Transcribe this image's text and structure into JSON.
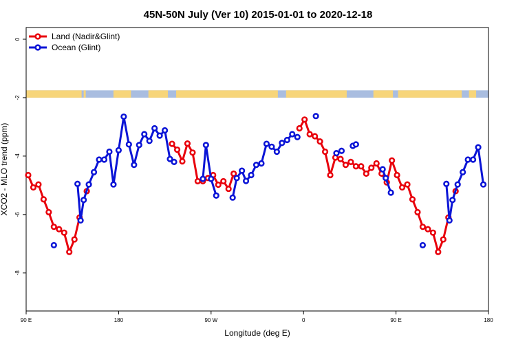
{
  "chart_data": {
    "type": "line",
    "title": "45N-50N July (Ver 10)   2015-01-01 to 2020-12-18",
    "xlabel": "Longitude (deg E)",
    "ylabel": "XCO2 - MLO trend (ppm)",
    "xlim": [
      90,
      540
    ],
    "ylim": [
      -9.3,
      0.4
    ],
    "x_ticks": [
      {
        "value": 90,
        "label": "90 E"
      },
      {
        "value": 180,
        "label": "180"
      },
      {
        "value": 270,
        "label": "90 W"
      },
      {
        "value": 360,
        "label": "0"
      },
      {
        "value": 450,
        "label": "90 E"
      },
      {
        "value": 540,
        "label": "180"
      }
    ],
    "y_ticks": [
      {
        "value": 0,
        "label": "0"
      },
      {
        "value": -2,
        "label": "-2"
      },
      {
        "value": -4,
        "label": "-4"
      },
      {
        "value": -6,
        "label": "-6"
      },
      {
        "value": -8,
        "label": "-8"
      }
    ],
    "grid": false,
    "legend": {
      "position": "top-left",
      "entries": [
        "Land (Nadir&Glint)",
        "Ocean (Glint)"
      ]
    },
    "colors": {
      "land": "#e8000b",
      "ocean": "#0a14d6",
      "band_land": "#f7d57a",
      "band_ocean": "#a9bde0"
    },
    "land_mask_band": {
      "y_range": [
        -2.0,
        -1.75
      ],
      "land_segments": [
        [
          90,
          144
        ],
        [
          146,
          148
        ],
        [
          175,
          192
        ],
        [
          209,
          228
        ],
        [
          236,
          335
        ],
        [
          343,
          402
        ],
        [
          428,
          447
        ],
        [
          452,
          514
        ],
        [
          521,
          528
        ]
      ]
    },
    "series": [
      {
        "name": "Land (Nadir&Glint)",
        "segments": [
          [
            [
              92,
              -4.65
            ],
            [
              97,
              -5.07
            ],
            [
              102,
              -4.97
            ],
            [
              107,
              -5.48
            ],
            [
              112,
              -5.92
            ],
            [
              117,
              -6.42
            ],
            [
              122,
              -6.5
            ],
            [
              127,
              -6.62
            ],
            [
              132,
              -7.28
            ],
            [
              137,
              -6.85
            ],
            [
              142,
              -6.1
            ]
          ],
          [
            [
              149,
              -5.2
            ]
          ],
          [
            [
              232,
              -3.58
            ],
            [
              237,
              -3.78
            ],
            [
              242,
              -4.18
            ],
            [
              247,
              -3.57
            ],
            [
              252,
              -3.88
            ],
            [
              257,
              -4.86
            ],
            [
              262,
              -4.86
            ],
            [
              267,
              -4.75
            ],
            [
              272,
              -4.65
            ],
            [
              277,
              -4.98
            ],
            [
              282,
              -4.86
            ],
            [
              287,
              -5.12
            ],
            [
              292,
              -4.6
            ]
          ],
          [
            [
              356,
              -3.05
            ],
            [
              361,
              -2.75
            ],
            [
              366,
              -3.25
            ],
            [
              371,
              -3.32
            ],
            [
              376,
              -3.5
            ],
            [
              381,
              -3.85
            ],
            [
              386,
              -4.65
            ],
            [
              391,
              -4.05
            ],
            [
              396,
              -4.1
            ],
            [
              401,
              -4.3
            ],
            [
              406,
              -4.2
            ],
            [
              411,
              -4.35
            ],
            [
              416,
              -4.35
            ],
            [
              421,
              -4.6
            ],
            [
              426,
              -4.4
            ],
            [
              431,
              -4.25
            ],
            [
              436,
              -4.6
            ],
            [
              441,
              -4.9
            ],
            [
              446,
              -4.15
            ],
            [
              451,
              -4.65
            ],
            [
              456,
              -5.07
            ],
            [
              461,
              -4.97
            ],
            [
              466,
              -5.48
            ],
            [
              471,
              -5.92
            ],
            [
              476,
              -6.42
            ],
            [
              481,
              -6.5
            ],
            [
              486,
              -6.62
            ],
            [
              491,
              -7.28
            ],
            [
              496,
              -6.85
            ],
            [
              501,
              -6.1
            ]
          ],
          [
            [
              508,
              -5.2
            ]
          ]
        ]
      },
      {
        "name": "Ocean (Glint)",
        "segments": [
          [
            [
              117,
              -7.05
            ]
          ],
          [
            [
              140,
              -4.95
            ],
            [
              143,
              -6.2
            ],
            [
              146,
              -5.5
            ],
            [
              151,
              -4.97
            ],
            [
              156,
              -4.55
            ],
            [
              161,
              -4.12
            ],
            [
              166,
              -4.12
            ],
            [
              171,
              -3.85
            ],
            [
              175,
              -4.97
            ],
            [
              180,
              -3.8
            ],
            [
              185,
              -2.65
            ],
            [
              190,
              -3.6
            ],
            [
              195,
              -4.3
            ],
            [
              200,
              -3.62
            ],
            [
              205,
              -3.25
            ],
            [
              210,
              -3.48
            ],
            [
              215,
              -3.05
            ],
            [
              220,
              -3.3
            ],
            [
              225,
              -3.12
            ],
            [
              230,
              -4.1
            ],
            [
              234,
              -4.2
            ]
          ],
          [
            [
              262,
              -4.78
            ],
            [
              265,
              -3.62
            ],
            [
              270,
              -4.78
            ],
            [
              275,
              -5.35
            ]
          ],
          [
            [
              291,
              -5.42
            ],
            [
              295,
              -4.75
            ],
            [
              300,
              -4.5
            ],
            [
              304,
              -4.85
            ],
            [
              309,
              -4.65
            ],
            [
              314,
              -4.3
            ],
            [
              319,
              -4.25
            ],
            [
              324,
              -3.58
            ],
            [
              329,
              -3.68
            ],
            [
              334,
              -3.85
            ],
            [
              339,
              -3.55
            ],
            [
              344,
              -3.45
            ],
            [
              349,
              -3.25
            ],
            [
              354,
              -3.35
            ]
          ],
          [
            [
              372,
              -2.63
            ]
          ],
          [
            [
              392,
              -3.9
            ],
            [
              397,
              -3.82
            ]
          ],
          [
            [
              408,
              -3.65
            ],
            [
              411,
              -3.6
            ]
          ],
          [
            [
              437,
              -4.45
            ],
            [
              440,
              -4.75
            ],
            [
              445,
              -5.25
            ]
          ],
          [
            [
              476,
              -7.05
            ]
          ],
          [
            [
              499,
              -4.95
            ],
            [
              502,
              -6.2
            ],
            [
              505,
              -5.5
            ],
            [
              510,
              -4.97
            ],
            [
              515,
              -4.55
            ],
            [
              520,
              -4.12
            ],
            [
              525,
              -4.12
            ],
            [
              530,
              -3.7
            ],
            [
              535,
              -4.97
            ]
          ]
        ]
      }
    ]
  }
}
